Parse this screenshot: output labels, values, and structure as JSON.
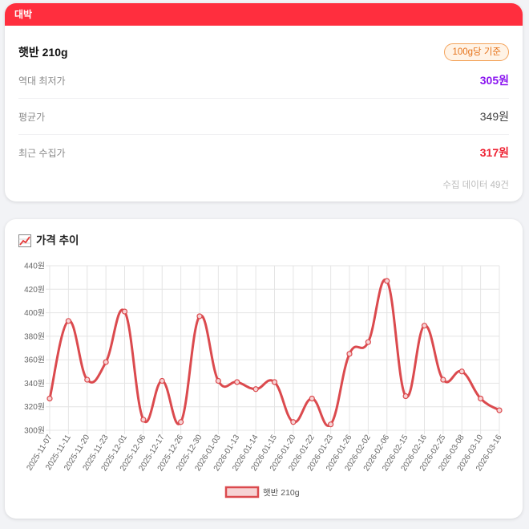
{
  "banner": {
    "label": "대박"
  },
  "product": {
    "name": "햇반 210g",
    "basis_badge": "100g당 기준"
  },
  "stats": [
    {
      "label": "역대 최저가",
      "value": "305원"
    },
    {
      "label": "평균가",
      "value": "349원"
    },
    {
      "label": "최근 수집가",
      "value": "317원"
    }
  ],
  "data_count": "수집 데이터 49건",
  "chart_section": {
    "title": "가격 추이",
    "icon": "chart-icon"
  },
  "chart_data": {
    "type": "line",
    "title": "가격 추이",
    "y_tick_labels": [
      "300원",
      "320원",
      "340원",
      "360원",
      "380원",
      "400원",
      "420원",
      "440원"
    ],
    "x_tick_labels": [
      "2025-11-07",
      "2025-11-11",
      "2025-11-20",
      "2025-11-23",
      "2025-12-01",
      "2025-12-06",
      "2025-12-17",
      "2025-12-26",
      "2025-12-30",
      "2026-01-03",
      "2026-01-13",
      "2026-01-14",
      "2026-01-15",
      "2026-01-20",
      "2026-01-22",
      "2026-01-23",
      "2026-01-26",
      "2026-02-02",
      "2026-02-06",
      "2026-02-15",
      "2026-02-16",
      "2026-02-25",
      "2026-03-08",
      "2026-03-10",
      "2026-03-16"
    ],
    "ylim": [
      300,
      440
    ],
    "series": [
      {
        "name": "햇반 210g",
        "color": "#db4a4e",
        "x": [
          "2025-11-07",
          "2025-11-11",
          "2025-11-20",
          "2025-11-23",
          "2025-12-01",
          "2025-12-06",
          "2025-12-17",
          "2025-12-26",
          "2025-12-30",
          "2026-01-03",
          "2026-01-13",
          "2026-01-14",
          "2026-01-15",
          "2026-01-20",
          "2026-01-22",
          "2026-01-23",
          "2026-01-26",
          "2026-02-02",
          "2026-02-06",
          "2026-02-15",
          "2026-02-16",
          "2026-02-25",
          "2026-03-08",
          "2026-03-10",
          "2026-03-16"
        ],
        "values": [
          327,
          393,
          343,
          358,
          401,
          309,
          342,
          307,
          397,
          342,
          341,
          335,
          341,
          307,
          327,
          305,
          365,
          375,
          427,
          329,
          389,
          343,
          350,
          327,
          317
        ]
      }
    ],
    "grid": true,
    "legend": "bottom"
  }
}
